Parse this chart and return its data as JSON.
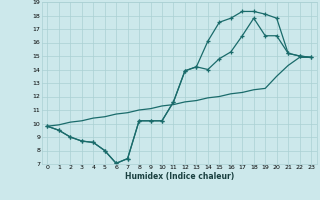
{
  "xlabel": "Humidex (Indice chaleur)",
  "xlim": [
    -0.5,
    23.5
  ],
  "ylim": [
    7,
    19
  ],
  "xticks": [
    0,
    1,
    2,
    3,
    4,
    5,
    6,
    7,
    8,
    9,
    10,
    11,
    12,
    13,
    14,
    15,
    16,
    17,
    18,
    19,
    20,
    21,
    22,
    23
  ],
  "yticks": [
    7,
    8,
    9,
    10,
    11,
    12,
    13,
    14,
    15,
    16,
    17,
    18,
    19
  ],
  "background_color": "#cce8eb",
  "grid_color": "#aad0d4",
  "line_color": "#1a6b6b",
  "line_width": 0.9,
  "marker": "+",
  "marker_size": 3.5,
  "curve1_x": [
    0,
    1,
    2,
    3,
    4,
    5,
    6,
    7,
    8,
    9,
    10,
    11,
    12,
    13,
    14,
    15,
    16,
    17,
    18,
    19,
    20,
    21,
    22,
    23
  ],
  "curve1_y": [
    9.8,
    9.5,
    9.0,
    8.7,
    8.6,
    8.0,
    7.05,
    7.4,
    10.2,
    10.2,
    10.2,
    11.6,
    13.9,
    14.2,
    16.1,
    17.5,
    17.8,
    18.3,
    18.3,
    18.1,
    17.8,
    15.2,
    15.0,
    14.9
  ],
  "curve2_x": [
    0,
    1,
    2,
    3,
    4,
    5,
    6,
    7,
    8,
    9,
    10,
    11,
    12,
    13,
    14,
    15,
    16,
    17,
    18,
    19,
    20,
    21,
    22,
    23
  ],
  "curve2_y": [
    9.8,
    9.5,
    9.0,
    8.7,
    8.6,
    8.0,
    7.05,
    7.4,
    10.2,
    10.2,
    10.2,
    11.6,
    13.9,
    14.2,
    14.0,
    14.8,
    15.3,
    16.5,
    17.8,
    16.5,
    16.5,
    15.2,
    15.0,
    14.9
  ],
  "curve3_x": [
    0,
    1,
    2,
    3,
    4,
    5,
    6,
    7,
    8,
    9,
    10,
    11,
    12,
    13,
    14,
    15,
    16,
    17,
    18,
    19,
    20,
    21,
    22,
    23
  ],
  "curve3_y": [
    9.8,
    9.9,
    10.1,
    10.2,
    10.4,
    10.5,
    10.7,
    10.8,
    11.0,
    11.1,
    11.3,
    11.4,
    11.6,
    11.7,
    11.9,
    12.0,
    12.2,
    12.3,
    12.5,
    12.6,
    13.5,
    14.3,
    14.9,
    14.9
  ]
}
